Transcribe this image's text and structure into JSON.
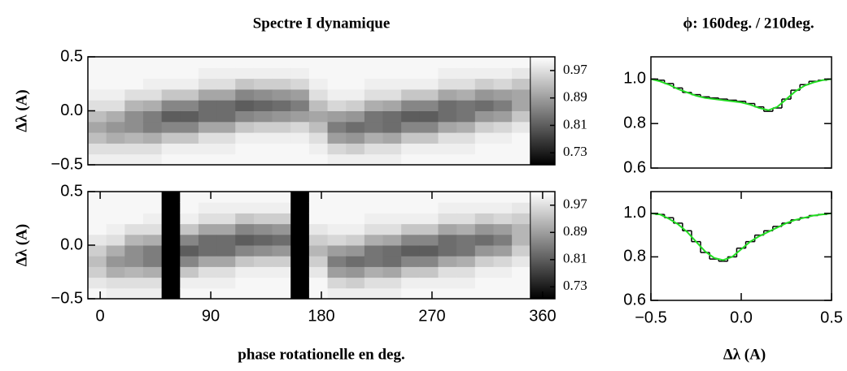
{
  "chart_data": [
    {
      "type": "heatmap",
      "title": "Spectre I dynamique",
      "ylabel": "Δλ (A)",
      "xlim": [
        -10,
        370
      ],
      "ylim": [
        -0.5,
        0.5
      ],
      "yticks": [
        {
          "value": -0.5,
          "label": "−0.5"
        },
        {
          "value": 0,
          "label": "0.0"
        },
        {
          "value": 0.5,
          "label": "0.5"
        }
      ],
      "xbins": [
        -10,
        5,
        20,
        35,
        50,
        65,
        80,
        95,
        110,
        125,
        140,
        155,
        170,
        185,
        200,
        215,
        230,
        245,
        260,
        275,
        290,
        305,
        320,
        335,
        350
      ],
      "ybins": [
        -0.5,
        -0.4,
        -0.3,
        -0.2,
        -0.1,
        0,
        0.1,
        0.2,
        0.3,
        0.4,
        0.5
      ],
      "zlim": [
        0.695,
        1.01
      ],
      "colorbar_ticks": [
        0.97,
        0.89,
        0.81,
        0.73
      ],
      "missing_color": "#000000",
      "z": [
        [
          0.99,
          0.97,
          0.93,
          0.9,
          0.93,
          0.97,
          0.99,
          1,
          1,
          1
        ],
        [
          0.99,
          0.97,
          0.91,
          0.88,
          0.91,
          0.97,
          0.99,
          1,
          1,
          1
        ],
        [
          0.99,
          0.97,
          0.92,
          0.87,
          0.87,
          0.92,
          0.97,
          1,
          1,
          1
        ],
        [
          0.99,
          0.97,
          0.91,
          0.85,
          0.85,
          0.91,
          0.97,
          0.99,
          1,
          1
        ],
        [
          1,
          0.99,
          0.94,
          0.86,
          0.81,
          0.86,
          0.94,
          0.99,
          1,
          1
        ],
        [
          1,
          0.99,
          0.94,
          0.86,
          0.81,
          0.86,
          0.94,
          0.99,
          1,
          1
        ],
        [
          1,
          0.99,
          0.97,
          0.9,
          0.83,
          0.83,
          0.9,
          0.97,
          0.99,
          1
        ],
        [
          1,
          0.99,
          0.97,
          0.9,
          0.83,
          0.83,
          0.9,
          0.97,
          0.99,
          1
        ],
        [
          1,
          1,
          0.99,
          0.94,
          0.86,
          0.81,
          0.86,
          0.94,
          0.99,
          1
        ],
        [
          1,
          1,
          0.99,
          0.95,
          0.87,
          0.82,
          0.87,
          0.95,
          0.99,
          1
        ],
        [
          1,
          1,
          0.99,
          0.95,
          0.88,
          0.83,
          0.88,
          0.95,
          0.99,
          1
        ],
        [
          1,
          1,
          0.99,
          0.96,
          0.89,
          0.85,
          0.89,
          0.96,
          0.99,
          1
        ],
        [
          1,
          0.99,
          0.97,
          0.93,
          0.9,
          0.93,
          0.97,
          0.99,
          1,
          1
        ],
        [
          0.99,
          0.96,
          0.89,
          0.85,
          0.89,
          0.96,
          0.99,
          1,
          1,
          1
        ],
        [
          0.99,
          0.95,
          0.88,
          0.83,
          0.88,
          0.95,
          0.99,
          1,
          1,
          1
        ],
        [
          0.99,
          0.97,
          0.91,
          0.84,
          0.84,
          0.91,
          0.97,
          0.99,
          1,
          1
        ],
        [
          0.99,
          0.97,
          0.9,
          0.83,
          0.83,
          0.9,
          0.97,
          0.99,
          1,
          1
        ],
        [
          1,
          0.99,
          0.94,
          0.86,
          0.81,
          0.86,
          0.94,
          0.99,
          1,
          1
        ],
        [
          1,
          0.99,
          0.94,
          0.86,
          0.81,
          0.86,
          0.94,
          0.99,
          1,
          1
        ],
        [
          1,
          0.99,
          0.97,
          0.9,
          0.83,
          0.83,
          0.9,
          0.97,
          0.99,
          1
        ],
        [
          1,
          0.99,
          0.97,
          0.91,
          0.84,
          0.84,
          0.91,
          0.97,
          0.99,
          1
        ],
        [
          1,
          1,
          0.99,
          0.95,
          0.88,
          0.83,
          0.88,
          0.95,
          0.99,
          1
        ],
        [
          1,
          1,
          0.99,
          0.96,
          0.89,
          0.85,
          0.89,
          0.96,
          0.99,
          1
        ],
        [
          1,
          1,
          1,
          0.98,
          0.94,
          0.9,
          0.9,
          0.94,
          0.98,
          1
        ]
      ]
    },
    {
      "type": "heatmap",
      "xlabel": "phase rotationelle en deg.",
      "ylabel": "Δλ (A)",
      "xlim": [
        -10,
        370
      ],
      "ylim": [
        -0.5,
        0.5
      ],
      "xticks": [
        0,
        90,
        180,
        270,
        360
      ],
      "yticks": [
        {
          "value": -0.5,
          "label": "−0.5"
        },
        {
          "value": 0,
          "label": "0.0"
        },
        {
          "value": 0.5,
          "label": "0.5"
        }
      ],
      "xbins": [
        -10,
        5,
        20,
        35,
        50,
        65,
        80,
        95,
        110,
        125,
        140,
        155,
        170,
        185,
        200,
        215,
        230,
        245,
        260,
        275,
        290,
        305,
        320,
        335,
        350
      ],
      "ybins": [
        -0.5,
        -0.4,
        -0.3,
        -0.2,
        -0.1,
        0,
        0.1,
        0.2,
        0.3,
        0.4,
        0.5
      ],
      "zlim": [
        0.695,
        1.01
      ],
      "colorbar_ticks": [
        0.97,
        0.89,
        0.81,
        0.73
      ],
      "missing_color": "#000000",
      "z": [
        [
          1,
          0.98,
          0.95,
          0.93,
          0.95,
          0.98,
          1,
          1,
          1,
          1
        ],
        [
          0.99,
          0.97,
          0.91,
          0.88,
          0.91,
          0.97,
          0.99,
          1,
          1,
          1
        ],
        [
          0.99,
          0.97,
          0.92,
          0.87,
          0.87,
          0.92,
          0.97,
          1,
          1,
          1
        ],
        [
          0.99,
          0.97,
          0.91,
          0.85,
          0.85,
          0.91,
          0.97,
          0.99,
          1,
          1
        ],
        null,
        [
          1,
          0.99,
          0.94,
          0.86,
          0.81,
          0.86,
          0.94,
          0.99,
          1,
          1
        ],
        [
          1,
          0.99,
          0.97,
          0.9,
          0.83,
          0.83,
          0.9,
          0.97,
          0.99,
          1
        ],
        [
          1,
          0.99,
          0.97,
          0.9,
          0.83,
          0.83,
          0.9,
          0.97,
          0.99,
          1
        ],
        [
          1,
          1,
          0.99,
          0.94,
          0.86,
          0.81,
          0.86,
          0.94,
          0.99,
          1
        ],
        [
          1,
          1,
          0.99,
          0.95,
          0.87,
          0.82,
          0.87,
          0.95,
          0.99,
          1
        ],
        [
          1,
          1,
          0.99,
          0.95,
          0.88,
          0.83,
          0.88,
          0.95,
          0.99,
          1
        ],
        null,
        [
          1,
          1,
          0.98,
          0.95,
          0.92,
          0.95,
          0.98,
          1,
          1,
          1
        ],
        [
          0.99,
          0.96,
          0.89,
          0.85,
          0.89,
          0.96,
          0.99,
          1,
          1,
          1
        ],
        [
          0.99,
          0.95,
          0.88,
          0.83,
          0.88,
          0.95,
          0.99,
          1,
          1,
          1
        ],
        [
          0.99,
          0.97,
          0.91,
          0.84,
          0.84,
          0.91,
          0.97,
          0.99,
          1,
          1
        ],
        [
          0.99,
          0.97,
          0.9,
          0.83,
          0.83,
          0.9,
          0.97,
          0.99,
          1,
          1
        ],
        [
          1,
          0.99,
          0.94,
          0.86,
          0.81,
          0.86,
          0.94,
          0.99,
          1,
          1
        ],
        [
          1,
          0.99,
          0.94,
          0.86,
          0.81,
          0.86,
          0.94,
          0.99,
          1,
          1
        ],
        [
          1,
          0.99,
          0.97,
          0.9,
          0.83,
          0.83,
          0.9,
          0.97,
          0.99,
          1
        ],
        [
          1,
          0.99,
          0.97,
          0.91,
          0.84,
          0.84,
          0.91,
          0.97,
          0.99,
          1
        ],
        [
          1,
          1,
          0.99,
          0.95,
          0.88,
          0.83,
          0.88,
          0.95,
          0.99,
          1
        ],
        [
          1,
          1,
          0.99,
          0.96,
          0.89,
          0.85,
          0.89,
          0.96,
          0.99,
          1
        ],
        [
          1,
          1,
          1,
          0.98,
          0.95,
          0.92,
          0.92,
          0.95,
          0.98,
          1
        ]
      ]
    },
    {
      "type": "line",
      "title": "ϕ: 160deg. / 210deg.",
      "xlim": [
        -0.5,
        0.5
      ],
      "ylim": [
        0.6,
        1.1
      ],
      "yticks": [
        0.6,
        0.8,
        {
          "value": 1,
          "label": "1.0"
        }
      ],
      "x": [
        -0.5,
        -0.45,
        -0.4,
        -0.35,
        -0.3,
        -0.25,
        -0.2,
        -0.15,
        -0.1,
        -0.05,
        0,
        0.05,
        0.1,
        0.15,
        0.2,
        0.25,
        0.3,
        0.35,
        0.4,
        0.45,
        0.5
      ],
      "series": [
        {
          "color": "#000000",
          "step": true,
          "values": [
            1,
            0.995,
            0.98,
            0.96,
            0.94,
            0.93,
            0.92,
            0.915,
            0.91,
            0.905,
            0.9,
            0.89,
            0.875,
            0.855,
            0.87,
            0.91,
            0.95,
            0.975,
            0.99,
            0.995,
            1
          ]
        },
        {
          "color": "#22dd22",
          "values": [
            1,
            0.99,
            0.975,
            0.955,
            0.94,
            0.925,
            0.915,
            0.91,
            0.905,
            0.9,
            0.895,
            0.885,
            0.87,
            0.86,
            0.875,
            0.91,
            0.945,
            0.97,
            0.985,
            0.995,
            1
          ]
        }
      ]
    },
    {
      "type": "line",
      "xlabel": "Δλ (A)",
      "xlim": [
        -0.5,
        0.5
      ],
      "ylim": [
        0.6,
        1.1
      ],
      "xticks": [
        {
          "value": -0.5,
          "label": "−0.5"
        },
        {
          "value": 0,
          "label": "0.0"
        },
        0.5
      ],
      "yticks": [
        0.6,
        0.8,
        {
          "value": 1,
          "label": "1.0"
        }
      ],
      "x": [
        -0.5,
        -0.45,
        -0.4,
        -0.35,
        -0.3,
        -0.25,
        -0.2,
        -0.15,
        -0.1,
        -0.05,
        0,
        0.05,
        0.1,
        0.15,
        0.2,
        0.25,
        0.3,
        0.35,
        0.4,
        0.45,
        0.5
      ],
      "series": [
        {
          "color": "#000000",
          "step": true,
          "values": [
            1,
            0.995,
            0.98,
            0.955,
            0.92,
            0.87,
            0.82,
            0.79,
            0.78,
            0.8,
            0.84,
            0.87,
            0.9,
            0.92,
            0.94,
            0.955,
            0.97,
            0.98,
            0.99,
            0.995,
            1
          ]
        },
        {
          "color": "#22dd22",
          "values": [
            1,
            0.995,
            0.975,
            0.95,
            0.915,
            0.87,
            0.825,
            0.795,
            0.785,
            0.8,
            0.835,
            0.87,
            0.895,
            0.915,
            0.935,
            0.955,
            0.97,
            0.98,
            0.99,
            0.995,
            1
          ]
        }
      ]
    }
  ]
}
